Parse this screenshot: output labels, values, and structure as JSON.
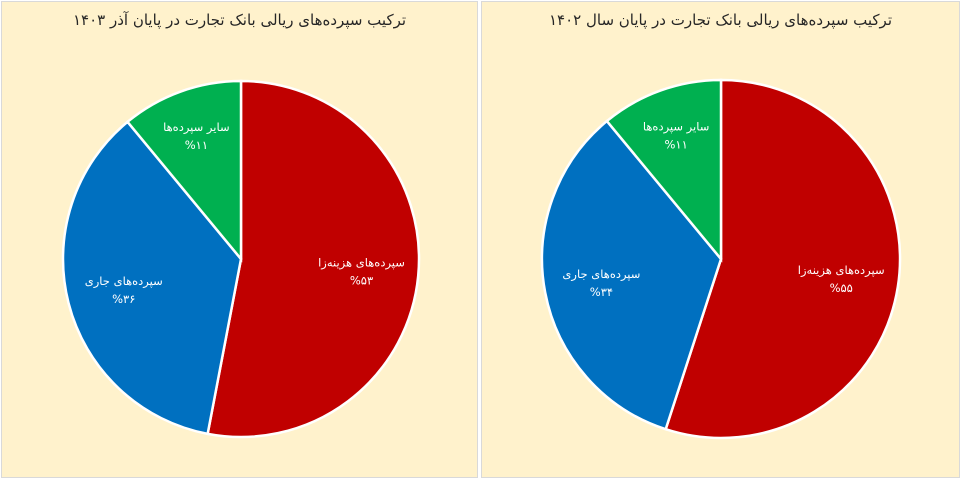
{
  "chart_data": [
    {
      "type": "pie",
      "title": "ترکیب سپرده‌های ریالی بانک تجارت در پایان آذر ۱۴۰۳",
      "slices": [
        {
          "label": "سپرده‌های هزینه‌زا",
          "value": 53,
          "value_label": "%۵۳",
          "color": "#c00000"
        },
        {
          "label": "سپرده‌های جاری",
          "value": 36,
          "value_label": "%۳۶",
          "color": "#0070c0"
        },
        {
          "label": "سایر سپرده‌ها",
          "value": 11,
          "value_label": "%۱۱",
          "color": "#00b050"
        }
      ]
    },
    {
      "type": "pie",
      "title": "ترکیب سپرده‌های ریالی بانک تجارت در پایان سال ۱۴۰۲",
      "slices": [
        {
          "label": "سپرده‌های هزینه‌زا",
          "value": 55,
          "value_label": "%۵۵",
          "color": "#c00000"
        },
        {
          "label": "سپرده‌های جاری",
          "value": 34,
          "value_label": "%۳۴",
          "color": "#0070c0"
        },
        {
          "label": "سایر سپرده‌ها",
          "value": 11,
          "value_label": "%۱۱",
          "color": "#00b050"
        }
      ]
    }
  ]
}
